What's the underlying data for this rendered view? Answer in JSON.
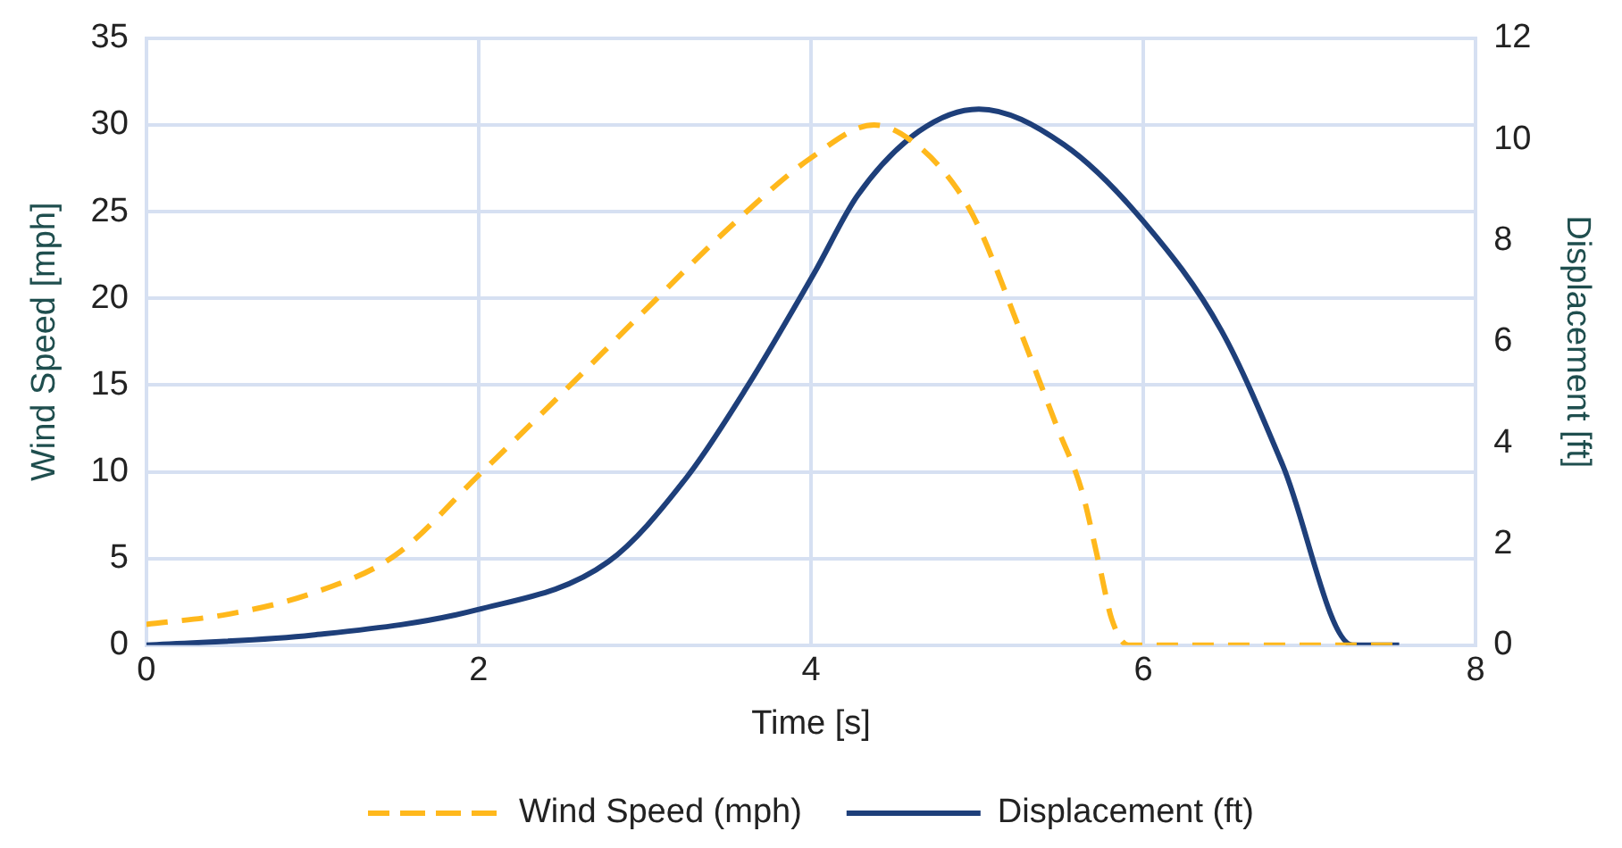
{
  "chart_data": {
    "type": "line",
    "xlabel": "Time [s]",
    "ylabel": "Wind Speed [mph]",
    "y2label": "Displacement [ft]",
    "xlim": [
      0,
      8
    ],
    "xticks": [
      0,
      2,
      4,
      6,
      8
    ],
    "ylim": [
      0,
      35
    ],
    "yticks": [
      0,
      5,
      10,
      15,
      20,
      25,
      30,
      35
    ],
    "y2lim": [
      0,
      12
    ],
    "y2ticks": [
      0,
      2,
      4,
      6,
      8,
      10,
      12
    ],
    "grid": true,
    "legend": "bottom",
    "marker": "none",
    "series": [
      {
        "name": "Wind Speed (mph)",
        "color": "#ffb81c",
        "line_style": "dashed",
        "x": [
          0,
          0.5,
          1,
          1.5,
          2,
          2.5,
          3,
          3.5,
          4,
          4.38,
          4.63,
          4.88,
          5.01,
          5.26,
          5.48,
          5.63,
          5.74,
          5.81,
          5.91,
          7.5
        ],
        "values": [
          1.2,
          1.8,
          3.0,
          5.2,
          9.8,
          14.5,
          19.3,
          24,
          28.1,
          30.0,
          28.9,
          26.3,
          24.1,
          18.1,
          12.6,
          8.9,
          4.4,
          1.5,
          0,
          0
        ]
      },
      {
        "name": "Displacement (ft)",
        "color": "#1e3f7a",
        "line_style": "solid",
        "axis": "y2",
        "x": [
          0,
          1,
          1.99,
          2.78,
          3.25,
          3.61,
          4.02,
          4.28,
          4.65,
          5.01,
          5.52,
          6.0,
          6.47,
          6.84,
          7.26,
          7.54
        ],
        "values": [
          0,
          0.2,
          0.7,
          1.65,
          3.31,
          5.08,
          7.36,
          8.89,
          10.16,
          10.6,
          9.9,
          8.38,
          6.22,
          3.55,
          0,
          0
        ]
      }
    ]
  }
}
